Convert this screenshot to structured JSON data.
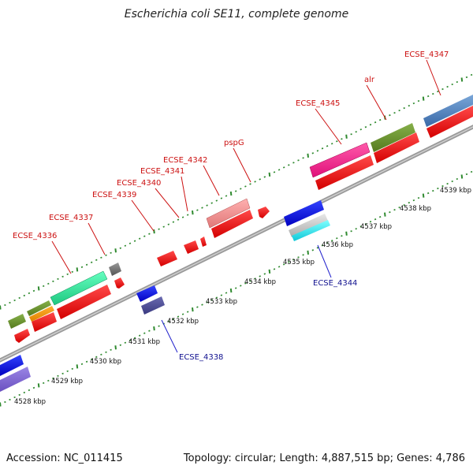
{
  "title": "Escherichia coli SE11, complete genome",
  "footer": {
    "accession": "Accession: NC_011415",
    "summary": "Topology: circular; Length: 4,887,515 bp; Genes: 4,786"
  },
  "colors": {
    "backbone": "#8a8a8a",
    "tick": "#2f8a2f",
    "forward_label": "#cc1111",
    "reverse_label": "#11118f"
  },
  "scale_ticks": [
    "4528 kbp",
    "4529 kbp",
    "4530 kbp",
    "4531 kbp",
    "4532 kbp",
    "4533 kbp",
    "4534 kbp",
    "4535 kbp",
    "4536 kbp",
    "4537 kbp",
    "4538 kbp",
    "4539 kbp"
  ],
  "forward_labels": [
    "ECSE_4336",
    "ECSE_4337",
    "ECSE_4339",
    "ECSE_4340",
    "ECSE_4341",
    "ECSE_4342",
    "pspG",
    "ECSE_4345",
    "alr",
    "ECSE_4347"
  ],
  "reverse_labels": [
    "ECSE_4338",
    "ECSE_4344"
  ]
}
